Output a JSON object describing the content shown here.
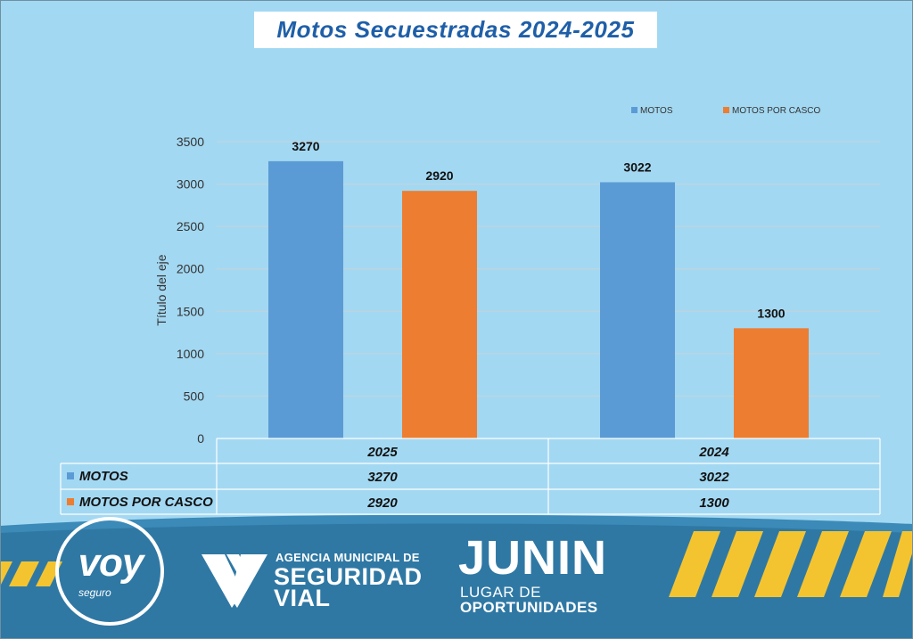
{
  "chart_data": {
    "type": "bar",
    "title": "Motos Secuestradas  2024-2025",
    "categories": [
      "2025",
      "2024"
    ],
    "series": [
      {
        "name": "MOTOS",
        "color": "#5b9bd5",
        "values": [
          3270,
          3022
        ]
      },
      {
        "name": "MOTOS POR CASCO",
        "color": "#ed7d31",
        "values": [
          2920,
          1300
        ]
      }
    ],
    "ylabel": "Título del eje",
    "xlabel": "",
    "ylim": [
      0,
      3500
    ],
    "yticks": [
      0,
      500,
      1000,
      1500,
      2000,
      2500,
      3000,
      3500
    ],
    "grid": true,
    "legend": "top-right",
    "data_table": true
  },
  "branding": {
    "voy_logo": {
      "main": "voy",
      "sub": "seguro"
    },
    "agency": {
      "line1": "AGENCIA MUNICIPAL DE",
      "line2": "SEGURIDAD",
      "line3": "VIAL"
    },
    "junin": {
      "main": "JUNIN",
      "line1": "LUGAR DE",
      "line2": "OPORTUNIDADES"
    }
  }
}
